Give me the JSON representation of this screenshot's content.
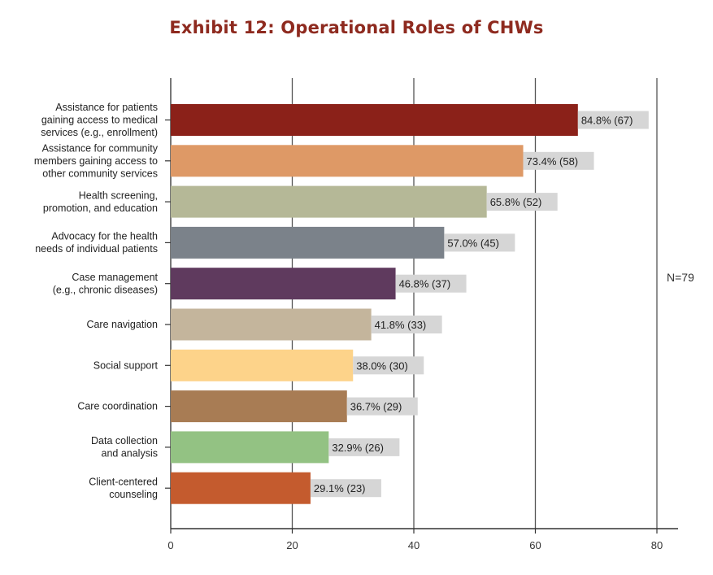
{
  "chart_data": {
    "type": "bar",
    "orientation": "horizontal",
    "title": "Exhibit 12: Operational Roles of CHWs",
    "note": "N=79",
    "xlim": [
      0,
      80
    ],
    "xticks": [
      0,
      20,
      40,
      60,
      80
    ],
    "grid": true,
    "categories": [
      [
        "Assistance for patients",
        "gaining access to medical",
        "services (e.g., enrollment)"
      ],
      [
        "Assistance for community",
        "members gaining access to",
        "other community services"
      ],
      [
        "Health screening,",
        "promotion, and education"
      ],
      [
        "Advocacy for the health",
        "needs of individual patients"
      ],
      [
        "Case management",
        "(e.g., chronic diseases)"
      ],
      [
        "Care navigation"
      ],
      [
        "Social support"
      ],
      [
        "Care coordination"
      ],
      [
        "Data collection",
        "and analysis"
      ],
      [
        "Client-centered",
        "counseling"
      ]
    ],
    "values": [
      67,
      58,
      52,
      45,
      37,
      33,
      30,
      29,
      26,
      23
    ],
    "data_labels": [
      "84.8% (67)",
      "73.4% (58)",
      "65.8% (52)",
      "57.0% (45)",
      "46.8% (37)",
      "41.8% (33)",
      "38.0% (30)",
      "36.7% (29)",
      "32.9% (26)",
      "29.1% (23)"
    ],
    "colors": [
      "#8b2119",
      "#de9966",
      "#b5b897",
      "#7b828a",
      "#5f3a5e",
      "#c4b59c",
      "#fdd38a",
      "#a87c54",
      "#93c283",
      "#c45b2e"
    ],
    "label_box_color": "#d6d6d6",
    "grid_color": "#555555"
  }
}
